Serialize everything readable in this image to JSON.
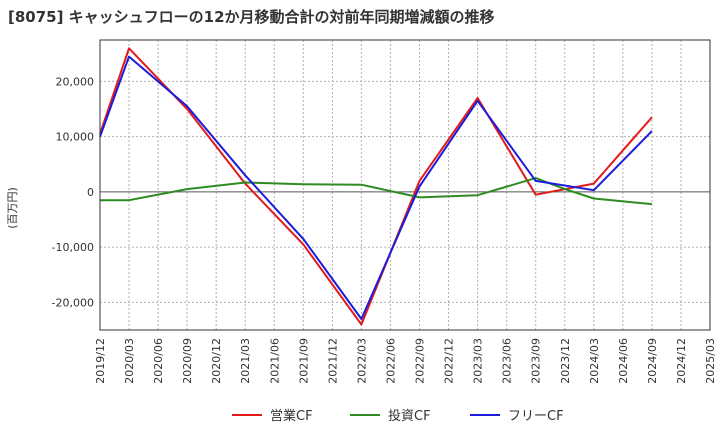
{
  "chart_data": {
    "type": "line",
    "title": "[8075]  キャッシュフローの12か月移動合計の対前年同期増減額の推移",
    "ylabel": "(百万円)",
    "xlabel": "",
    "ylim": [
      -25000,
      27500
    ],
    "yticks": [
      20000,
      10000,
      0,
      -10000,
      -20000
    ],
    "ytick_labels": [
      "20,000",
      "10,000",
      "0",
      "-10,000",
      "-20,000"
    ],
    "xticks": [
      "2019/12",
      "2020/03",
      "2020/06",
      "2020/09",
      "2020/12",
      "2021/03",
      "2021/06",
      "2021/09",
      "2021/12",
      "2022/03",
      "2022/06",
      "2022/09",
      "2022/12",
      "2023/03",
      "2023/06",
      "2023/09",
      "2023/12",
      "2024/03",
      "2024/06",
      "2024/09",
      "2024/12",
      "2025/03"
    ],
    "grid": true,
    "legend_position": "bottom",
    "series": [
      {
        "name": "営業CF",
        "color": "#e31a1c",
        "points": [
          {
            "x": "2019/12",
            "y": 10500
          },
          {
            "x": "2020/03",
            "y": 26000
          },
          {
            "x": "2020/09",
            "y": 15000
          },
          {
            "x": "2021/03",
            "y": 1500
          },
          {
            "x": "2021/09",
            "y": -9500
          },
          {
            "x": "2022/03",
            "y": -24000
          },
          {
            "x": "2022/09",
            "y": 2000
          },
          {
            "x": "2023/03",
            "y": 17000
          },
          {
            "x": "2023/09",
            "y": -500
          },
          {
            "x": "2024/03",
            "y": 1500
          },
          {
            "x": "2024/09",
            "y": 13500
          }
        ]
      },
      {
        "name": "投資CF",
        "color": "#2e8b22",
        "points": [
          {
            "x": "2019/12",
            "y": -1500
          },
          {
            "x": "2020/03",
            "y": -1500
          },
          {
            "x": "2020/09",
            "y": 500
          },
          {
            "x": "2021/03",
            "y": 1700
          },
          {
            "x": "2021/09",
            "y": 1400
          },
          {
            "x": "2022/03",
            "y": 1300
          },
          {
            "x": "2022/09",
            "y": -1000
          },
          {
            "x": "2023/03",
            "y": -600
          },
          {
            "x": "2023/09",
            "y": 2500
          },
          {
            "x": "2023/12",
            "y": 500
          },
          {
            "x": "2024/03",
            "y": -1200
          },
          {
            "x": "2024/09",
            "y": -2200
          }
        ]
      },
      {
        "name": "フリーCF",
        "color": "#1c1cdd",
        "points": [
          {
            "x": "2019/12",
            "y": 10000
          },
          {
            "x": "2020/03",
            "y": 24500
          },
          {
            "x": "2020/09",
            "y": 15500
          },
          {
            "x": "2021/03",
            "y": 3000
          },
          {
            "x": "2021/09",
            "y": -8500
          },
          {
            "x": "2022/03",
            "y": -23000
          },
          {
            "x": "2022/09",
            "y": 1000
          },
          {
            "x": "2023/03",
            "y": 16500
          },
          {
            "x": "2023/09",
            "y": 2000
          },
          {
            "x": "2024/03",
            "y": 300
          },
          {
            "x": "2024/09",
            "y": 11000
          }
        ]
      }
    ]
  }
}
